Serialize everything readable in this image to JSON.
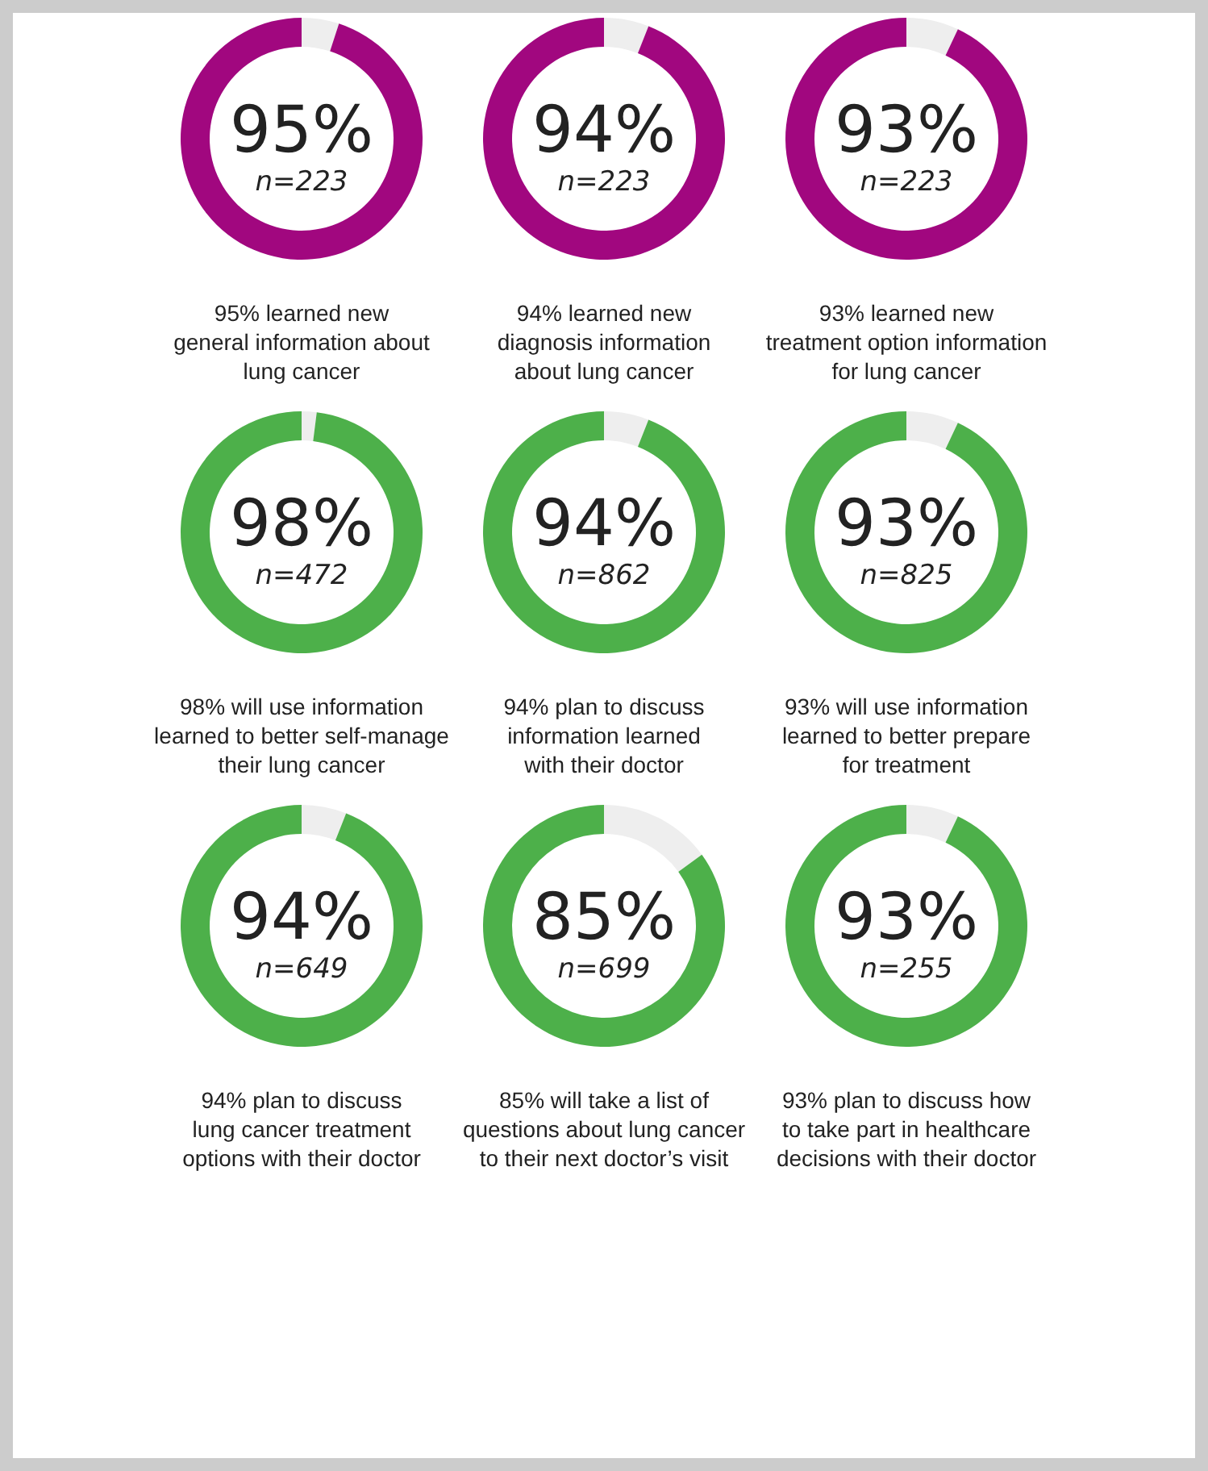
{
  "chart_data": [
    {
      "type": "donut",
      "categories": [
        null,
        null
      ],
      "values": [
        5,
        95
      ],
      "colors": [
        "#eeeeee",
        "#a1077f"
      ],
      "value_labels": [
        null,
        "95%"
      ],
      "annotations": [
        "n=223"
      ],
      "title": "95% learned new\ngeneral information about\nlung cancer"
    },
    {
      "type": "donut",
      "categories": [
        null,
        null
      ],
      "values": [
        6,
        94
      ],
      "colors": [
        "#eeeeee",
        "#a1077f"
      ],
      "value_labels": [
        null,
        "94%"
      ],
      "annotations": [
        "n=223"
      ],
      "title": "94% learned new\ndiagnosis information\nabout lung cancer"
    },
    {
      "type": "donut",
      "categories": [
        null,
        null
      ],
      "values": [
        7,
        93
      ],
      "colors": [
        "#eeeeee",
        "#a1077f"
      ],
      "value_labels": [
        null,
        "93%"
      ],
      "annotations": [
        "n=223"
      ],
      "title": "93% learned new\ntreatment option information\nfor lung cancer"
    },
    {
      "type": "donut",
      "categories": [
        null,
        null
      ],
      "values": [
        2,
        98
      ],
      "colors": [
        "#eeeeee",
        "#4db04a"
      ],
      "value_labels": [
        null,
        "98%"
      ],
      "annotations": [
        "n=472"
      ],
      "title": "98% will use information\nlearned to better self-manage\ntheir lung cancer"
    },
    {
      "type": "donut",
      "categories": [
        null,
        null
      ],
      "values": [
        6,
        94
      ],
      "colors": [
        "#eeeeee",
        "#4db04a"
      ],
      "value_labels": [
        null,
        "94%"
      ],
      "annotations": [
        "n=862"
      ],
      "title": "94% plan to discuss\ninformation learned\nwith their doctor"
    },
    {
      "type": "donut",
      "categories": [
        null,
        null
      ],
      "values": [
        7,
        93
      ],
      "colors": [
        "#eeeeee",
        "#4db04a"
      ],
      "value_labels": [
        null,
        "93%"
      ],
      "annotations": [
        "n=825"
      ],
      "title": "93% will use information\nlearned to better prepare\nfor treatment"
    },
    {
      "type": "donut",
      "categories": [
        null,
        null
      ],
      "values": [
        6,
        94
      ],
      "colors": [
        "#eeeeee",
        "#4db04a"
      ],
      "value_labels": [
        null,
        "94%"
      ],
      "annotations": [
        "n=649"
      ],
      "title": "94% plan to discuss\nlung cancer treatment\noptions with their doctor"
    },
    {
      "type": "donut",
      "categories": [
        null,
        null
      ],
      "values": [
        15,
        85
      ],
      "colors": [
        "#eeeeee",
        "#4db04a"
      ],
      "value_labels": [
        null,
        "85%"
      ],
      "annotations": [
        "n=699"
      ],
      "title": "85% will take a list of\nquestions about lung cancer\nto their next doctor’s visit"
    },
    {
      "type": "donut",
      "categories": [
        null,
        null
      ],
      "values": [
        7,
        93
      ],
      "colors": [
        "#eeeeee",
        "#4db04a"
      ],
      "value_labels": [
        null,
        "93%"
      ],
      "annotations": [
        "n=255"
      ],
      "title": "93% plan to discuss how\nto take part in healthcare\ndecisions with their doctor"
    }
  ]
}
